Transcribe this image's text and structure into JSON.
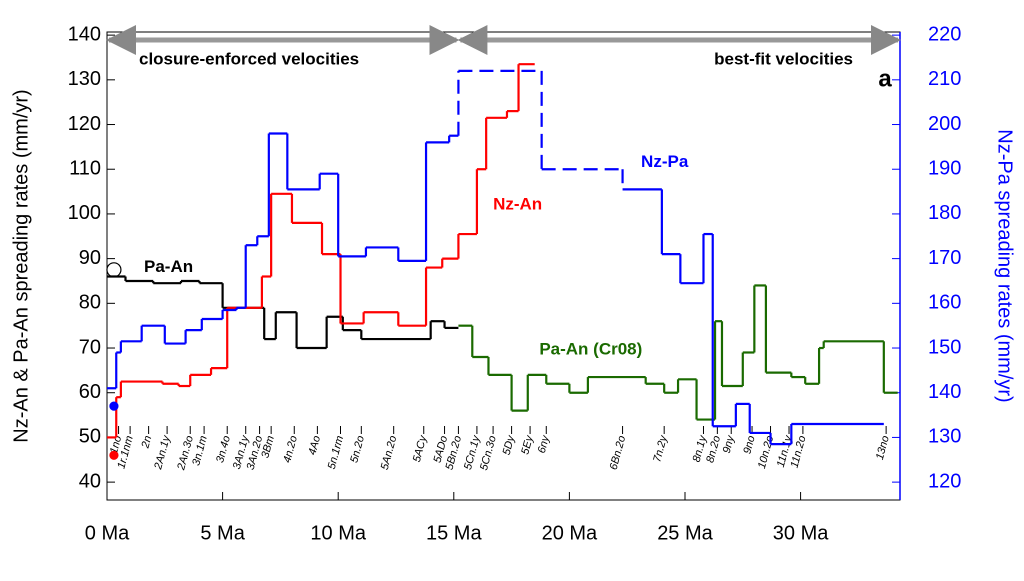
{
  "chart_data": {
    "type": "step",
    "ylabel": "Nz-An & Pa-An spreading rates (mm/yr)",
    "y2label": "Nz-Pa spreading rates (mm/yr)",
    "xlim": [
      0,
      34.3
    ],
    "xticks": [
      {
        "value": 0,
        "label": "0 Ma"
      },
      {
        "value": 5,
        "label": "5 Ma"
      },
      {
        "value": 10,
        "label": "10 Ma"
      },
      {
        "value": 15,
        "label": "15 Ma"
      },
      {
        "value": 20,
        "label": "20 Ma"
      },
      {
        "value": 25,
        "label": "25 Ma"
      },
      {
        "value": 30,
        "label": "30 Ma"
      }
    ],
    "ylim": [
      36,
      140.7
    ],
    "yticks": [
      40,
      50,
      60,
      70,
      80,
      90,
      100,
      110,
      120,
      130,
      140
    ],
    "y2lim": [
      116,
      220.7
    ],
    "y2ticks": [
      120,
      130,
      140,
      150,
      160,
      170,
      180,
      190,
      200,
      210,
      220
    ],
    "panel_label": "a",
    "periods": [
      {
        "label": "closure-enforced velocities",
        "range": [
          0,
          15.2
        ]
      },
      {
        "label": "best-fit velocities",
        "range": [
          15.2,
          34.3
        ]
      }
    ],
    "series": [
      {
        "name": "Pa-An",
        "color": "#000000",
        "edges": [
          0,
          0.8,
          2,
          3.2,
          4,
          5,
          6.8,
          7.3,
          8.2,
          9.5,
          10.2,
          11,
          14,
          14.6,
          15.2
        ],
        "values": [
          86,
          85,
          84.5,
          85,
          84.5,
          79,
          72,
          78,
          70,
          77,
          74,
          72,
          76,
          74.5
        ],
        "label_at": [
          1.6,
          88
        ]
      },
      {
        "name": "Pa-An (Cr08)",
        "color": "#1a6a00",
        "edges": [
          15.2,
          15.8,
          16.5,
          17.5,
          18.2,
          19,
          20,
          20.8,
          23.3,
          24.1,
          24.7,
          25.5,
          26.3,
          26.6,
          27.5,
          28,
          28.5,
          29.6,
          30.2,
          30.8,
          31,
          33.6,
          34.2
        ],
        "values": [
          75,
          68,
          64,
          56,
          64,
          62,
          60,
          63.5,
          62,
          60,
          63,
          54,
          76,
          61.5,
          69,
          84,
          64.5,
          63.5,
          62,
          70,
          71.5,
          60
        ],
        "label_at": [
          18.7,
          69.5
        ]
      },
      {
        "name": "Nz-An",
        "color": "#ff0000",
        "edges": [
          0,
          0.4,
          0.6,
          2.4,
          3.1,
          3.6,
          4.5,
          5.2,
          6.7,
          7.1,
          8,
          9.3,
          10.1,
          11.1,
          12.6,
          13.8,
          14.5,
          15.2,
          16,
          16.4,
          17.3,
          17.8,
          18.5
        ],
        "values": [
          50,
          59,
          62.5,
          62,
          61.5,
          64,
          65.5,
          79,
          86,
          104.5,
          98,
          91,
          75.5,
          78,
          75,
          88,
          90,
          95.5,
          110,
          121.5,
          123,
          133.5
        ],
        "label_at": [
          16.7,
          102
        ]
      },
      {
        "name": "Nz-Pa",
        "color": "#0000ff",
        "axis": "y2",
        "dashed_steps": [
          19,
          20
        ],
        "edges": [
          0,
          0.4,
          0.6,
          1.5,
          2.5,
          3.4,
          4.1,
          5,
          5.6,
          6,
          6.5,
          7,
          7.8,
          9.2,
          10,
          11.2,
          12.6,
          13.8,
          14.8,
          15.2,
          18.8,
          22.3,
          24,
          24.8,
          25.8,
          26.2,
          27.2,
          27.8,
          28.7,
          29.6,
          33.6
        ],
        "values": [
          141,
          149,
          151.5,
          155,
          151,
          154,
          156.5,
          158.5,
          159,
          173,
          175,
          198,
          185.5,
          189,
          170.5,
          172.5,
          169.5,
          196,
          197.5,
          212,
          190,
          185.5,
          171,
          164.5,
          175.5,
          132.5,
          137.5,
          131,
          128.5,
          133
        ],
        "label_at": [
          23.1,
          191.5
        ]
      }
    ],
    "markers": [
      {
        "x": 0.3,
        "y": 87.5,
        "color": "#000000",
        "open": true
      },
      {
        "x": 0.3,
        "y": 57,
        "color": "#0000ff",
        "open": false
      },
      {
        "x": 0.3,
        "y": 46,
        "color": "#ff0000",
        "open": false
      }
    ],
    "chrons": [
      {
        "label": "1no",
        "age": 0.5
      },
      {
        "label": "1r.1nm",
        "age": 1.0
      },
      {
        "label": "2n",
        "age": 1.8
      },
      {
        "label": "2An.1y",
        "age": 2.6
      },
      {
        "label": "2An.3o",
        "age": 3.6
      },
      {
        "label": "3n.1m",
        "age": 4.2
      },
      {
        "label": "3n.4o",
        "age": 5.2
      },
      {
        "label": "3An.1y",
        "age": 6.0
      },
      {
        "label": "3An.2o",
        "age": 6.6
      },
      {
        "label": "3Bm",
        "age": 7.1
      },
      {
        "label": "4n.2o",
        "age": 8.1
      },
      {
        "label": "4Ao",
        "age": 9.1
      },
      {
        "label": "5n.1rm",
        "age": 10.1
      },
      {
        "label": "5n.2o",
        "age": 11.0
      },
      {
        "label": "5An.2o",
        "age": 12.4
      },
      {
        "label": "5ACy",
        "age": 13.7
      },
      {
        "label": "5ADo",
        "age": 14.6
      },
      {
        "label": "5Bn.2o",
        "age": 15.2
      },
      {
        "label": "5Cn.1y",
        "age": 16.0
      },
      {
        "label": "5Cn.3o",
        "age": 16.7
      },
      {
        "label": "5Dy",
        "age": 17.5
      },
      {
        "label": "5Ey",
        "age": 18.3
      },
      {
        "label": "6ny",
        "age": 19.0
      },
      {
        "label": "6Bn.2o",
        "age": 22.3
      },
      {
        "label": "7n.2y",
        "age": 24.1
      },
      {
        "label": "8n.1y",
        "age": 25.8
      },
      {
        "label": "8n.2o",
        "age": 26.4
      },
      {
        "label": "9ny",
        "age": 27.0
      },
      {
        "label": "9no",
        "age": 27.9
      },
      {
        "label": "10n.2o",
        "age": 28.7
      },
      {
        "label": "11n.1y",
        "age": 29.5
      },
      {
        "label": "11n.2o",
        "age": 30.1
      },
      {
        "label": "13no",
        "age": 33.7
      }
    ]
  }
}
